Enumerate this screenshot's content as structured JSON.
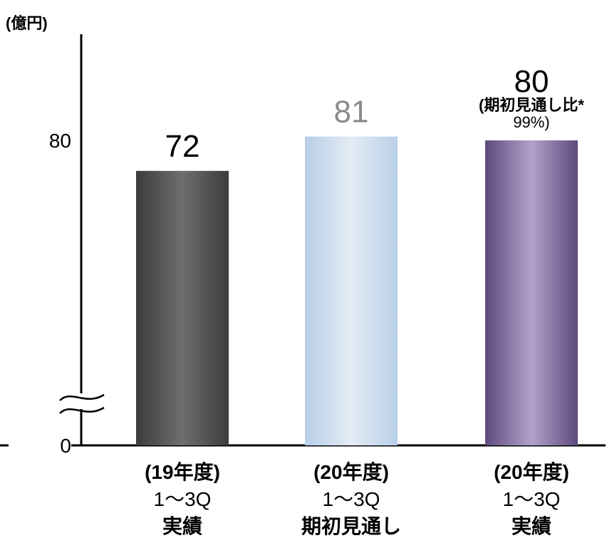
{
  "chart_data": {
    "type": "bar",
    "title": "",
    "unit_label": "(億円)",
    "ylabel": "",
    "xlabel": "",
    "axis_break": true,
    "y_ticks": [
      {
        "value": 0,
        "label": "0"
      },
      {
        "value": 80,
        "label": "80"
      }
    ],
    "ylim_display": [
      0,
      85
    ],
    "categories": [
      {
        "lines": [
          "(19年度)",
          "1〜3Q",
          "実績"
        ],
        "value": 72,
        "value_label": "72",
        "value_color": "#000000",
        "note_lines": []
      },
      {
        "lines": [
          "(20年度)",
          "1〜3Q",
          "期初見通し"
        ],
        "value": 81,
        "value_label": "81",
        "value_color": "#8a8a8a",
        "note_lines": []
      },
      {
        "lines": [
          "(20年度)",
          "1〜3Q",
          "実績"
        ],
        "value": 80,
        "value_label": "80",
        "value_color": "#000000",
        "note_lines": [
          "(期初見通し比*",
          "99%)"
        ]
      }
    ],
    "bar_colors": [
      {
        "edge": "#3c3c3c",
        "mid": "#6e6e6e"
      },
      {
        "edge": "#b8cfe8",
        "mid": "#e4ecf5"
      },
      {
        "edge": "#5e4a7e",
        "mid": "#b3a2cb"
      }
    ],
    "grid": false,
    "legend": "none"
  }
}
